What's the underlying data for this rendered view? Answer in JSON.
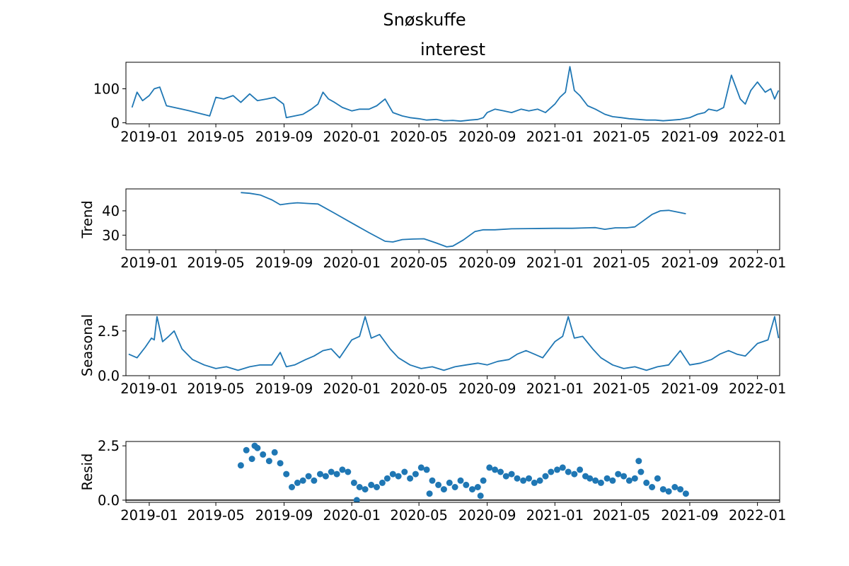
{
  "figure_title": "Snøskuffe",
  "chart_data": [
    {
      "type": "line",
      "title": "interest",
      "ylabel": "",
      "ylim": [
        -3,
        178
      ],
      "yticks": [
        0,
        100
      ],
      "xlim": [
        "2018-11-20",
        "2022-02-10"
      ],
      "xticks": [
        "2019-01",
        "2019-05",
        "2019-09",
        "2020-01",
        "2020-05",
        "2020-09",
        "2021-01",
        "2021-05",
        "2021-09",
        "2022-01"
      ],
      "grid": false,
      "series": [
        {
          "x": [
            "2018-12-01",
            "2018-12-10",
            "2018-12-20",
            "2019-01-01",
            "2019-01-10",
            "2019-01-20",
            "2019-02-01",
            "2019-02-15",
            "2019-03-01",
            "2019-03-15",
            "2019-04-01",
            "2019-04-20",
            "2019-05-01",
            "2019-05-15",
            "2019-06-01",
            "2019-06-15",
            "2019-07-01",
            "2019-07-15",
            "2019-08-01",
            "2019-08-15",
            "2019-08-31",
            "2019-09-05",
            "2019-09-20",
            "2019-10-05",
            "2019-10-20",
            "2019-11-01",
            "2019-11-10",
            "2019-11-20",
            "2019-12-01",
            "2019-12-15",
            "2020-01-01",
            "2020-01-15",
            "2020-02-01",
            "2020-02-15",
            "2020-03-01",
            "2020-03-15",
            "2020-04-01",
            "2020-04-15",
            "2020-05-01",
            "2020-05-15",
            "2020-06-01",
            "2020-06-15",
            "2020-07-01",
            "2020-07-15",
            "2020-08-01",
            "2020-08-15",
            "2020-08-25",
            "2020-09-01",
            "2020-09-15",
            "2020-10-01",
            "2020-10-15",
            "2020-11-01",
            "2020-11-15",
            "2020-12-01",
            "2020-12-15",
            "2021-01-01",
            "2021-01-10",
            "2021-01-20",
            "2021-01-28",
            "2021-02-05",
            "2021-02-15",
            "2021-03-01",
            "2021-03-15",
            "2021-04-01",
            "2021-04-15",
            "2021-05-01",
            "2021-05-15",
            "2021-06-01",
            "2021-06-15",
            "2021-07-01",
            "2021-07-15",
            "2021-08-01",
            "2021-08-15",
            "2021-09-01",
            "2021-09-15",
            "2021-09-28",
            "2021-10-05",
            "2021-10-20",
            "2021-11-01",
            "2021-11-15",
            "2021-12-01",
            "2021-12-10",
            "2021-12-20",
            "2022-01-01",
            "2022-01-15",
            "2022-01-25",
            "2022-02-01",
            "2022-02-08"
          ],
          "y": [
            45,
            90,
            65,
            80,
            100,
            105,
            50,
            45,
            40,
            35,
            28,
            20,
            75,
            70,
            80,
            60,
            85,
            65,
            70,
            75,
            55,
            15,
            20,
            25,
            40,
            55,
            90,
            70,
            60,
            45,
            35,
            40,
            40,
            50,
            70,
            30,
            20,
            15,
            12,
            8,
            10,
            6,
            7,
            5,
            8,
            10,
            15,
            30,
            40,
            35,
            30,
            40,
            35,
            40,
            30,
            55,
            75,
            90,
            165,
            95,
            80,
            50,
            40,
            25,
            18,
            15,
            12,
            10,
            8,
            8,
            6,
            8,
            10,
            15,
            25,
            30,
            40,
            35,
            45,
            140,
            70,
            55,
            95,
            120,
            90,
            100,
            70,
            95
          ]
        }
      ]
    },
    {
      "type": "line",
      "title": "",
      "ylabel": "Trend",
      "ylim": [
        24,
        49
      ],
      "yticks": [
        30,
        40
      ],
      "xlim": [
        "2018-11-20",
        "2022-02-10"
      ],
      "xticks": [
        "2019-01",
        "2019-05",
        "2019-09",
        "2020-01",
        "2020-05",
        "2020-09",
        "2021-01",
        "2021-05",
        "2021-09",
        "2022-01"
      ],
      "grid": false,
      "series": [
        {
          "x": [
            "2019-06-15",
            "2019-07-01",
            "2019-07-20",
            "2019-08-10",
            "2019-08-25",
            "2019-09-10",
            "2019-09-25",
            "2019-10-15",
            "2019-11-01",
            "2019-12-01",
            "2020-01-01",
            "2020-02-01",
            "2020-03-01",
            "2020-03-15",
            "2020-04-01",
            "2020-04-20",
            "2020-05-10",
            "2020-06-01",
            "2020-06-20",
            "2020-07-01",
            "2020-07-20",
            "2020-08-10",
            "2020-08-25",
            "2020-09-15",
            "2020-10-15",
            "2020-11-15",
            "2021-01-01",
            "2021-02-01",
            "2021-03-01",
            "2021-03-15",
            "2021-04-01",
            "2021-04-20",
            "2021-05-10",
            "2021-05-25",
            "2021-06-10",
            "2021-06-25",
            "2021-07-10",
            "2021-07-25",
            "2021-08-10",
            "2021-08-25"
          ],
          "y": [
            47.5,
            47.2,
            46.5,
            44.5,
            42.5,
            43,
            43.3,
            43,
            42.8,
            39,
            35,
            31,
            27.5,
            27.2,
            28.2,
            28.4,
            28.5,
            26.8,
            25.2,
            25.5,
            28,
            31.5,
            32.2,
            32.2,
            32.6,
            32.7,
            32.8,
            32.8,
            33,
            33.1,
            32.4,
            33,
            33,
            33.4,
            36,
            38.5,
            40,
            40.2,
            39.5,
            38.8
          ]
        }
      ]
    },
    {
      "type": "line",
      "title": "",
      "ylabel": "Seasonal",
      "ylim": [
        0,
        3.4
      ],
      "yticks": [
        0.0,
        2.5
      ],
      "ytick_labels": [
        "0.0",
        "2.5"
      ],
      "xlim": [
        "2018-11-20",
        "2022-02-10"
      ],
      "xticks": [
        "2019-01",
        "2019-05",
        "2019-09",
        "2020-01",
        "2020-05",
        "2020-09",
        "2021-01",
        "2021-05",
        "2021-09",
        "2022-01"
      ],
      "grid": false,
      "series": [
        {
          "x": [
            "2018-11-25",
            "2018-12-10",
            "2018-12-25",
            "2019-01-05",
            "2019-01-10",
            "2019-01-15",
            "2019-01-25",
            "2019-02-05",
            "2019-02-15",
            "2019-03-01",
            "2019-03-20",
            "2019-04-10",
            "2019-05-01",
            "2019-05-20",
            "2019-06-10",
            "2019-07-01",
            "2019-07-20",
            "2019-08-10",
            "2019-08-25",
            "2019-09-05",
            "2019-09-20",
            "2019-10-10",
            "2019-10-25",
            "2019-11-10",
            "2019-11-25",
            "2019-12-10",
            "2020-01-01",
            "2020-01-15",
            "2020-01-25",
            "2020-02-05",
            "2020-02-20",
            "2020-03-10",
            "2020-03-25",
            "2020-04-15",
            "2020-05-05",
            "2020-05-25",
            "2020-06-15",
            "2020-07-05",
            "2020-07-25",
            "2020-08-15",
            "2020-09-01",
            "2020-09-20",
            "2020-10-10",
            "2020-10-25",
            "2020-11-10",
            "2020-11-25",
            "2020-12-10",
            "2021-01-01",
            "2021-01-15",
            "2021-01-25",
            "2021-02-05",
            "2021-02-20",
            "2021-03-10",
            "2021-03-25",
            "2021-04-15",
            "2021-05-05",
            "2021-05-25",
            "2021-06-15",
            "2021-07-05",
            "2021-07-25",
            "2021-08-15",
            "2021-09-01",
            "2021-09-20",
            "2021-10-10",
            "2021-10-25",
            "2021-11-10",
            "2021-11-25",
            "2021-12-10",
            "2022-01-01",
            "2022-01-20",
            "2022-02-01",
            "2022-02-08"
          ],
          "y": [
            1.2,
            1.0,
            1.6,
            2.1,
            2.0,
            3.3,
            1.9,
            2.2,
            2.5,
            1.5,
            0.9,
            0.6,
            0.4,
            0.5,
            0.3,
            0.5,
            0.6,
            0.6,
            1.3,
            0.5,
            0.6,
            0.9,
            1.1,
            1.4,
            1.5,
            1.0,
            2.0,
            2.2,
            3.3,
            2.1,
            2.3,
            1.5,
            1.0,
            0.6,
            0.4,
            0.5,
            0.3,
            0.5,
            0.6,
            0.7,
            0.6,
            0.8,
            0.9,
            1.2,
            1.4,
            1.2,
            1.0,
            1.9,
            2.2,
            3.3,
            2.1,
            2.2,
            1.5,
            1.0,
            0.6,
            0.4,
            0.5,
            0.3,
            0.5,
            0.6,
            1.4,
            0.6,
            0.7,
            0.9,
            1.2,
            1.4,
            1.2,
            1.1,
            1.8,
            2.0,
            3.3,
            2.1
          ]
        }
      ]
    },
    {
      "type": "scatter",
      "title": "",
      "ylabel": "Resid",
      "ylim": [
        -0.1,
        2.7
      ],
      "yticks": [
        0.0,
        2.5
      ],
      "ytick_labels": [
        "0.0",
        "2.5"
      ],
      "xlim": [
        "2018-11-20",
        "2022-02-10"
      ],
      "xticks": [
        "2019-01",
        "2019-05",
        "2019-09",
        "2020-01",
        "2020-05",
        "2020-09",
        "2021-01",
        "2021-05",
        "2021-09",
        "2022-01"
      ],
      "grid": false,
      "hline": 0,
      "series": [
        {
          "x": [
            "2019-06-15",
            "2019-06-25",
            "2019-07-05",
            "2019-07-15",
            "2019-07-25",
            "2019-08-05",
            "2019-08-15",
            "2019-08-25",
            "2019-09-05",
            "2019-09-15",
            "2019-09-25",
            "2019-10-05",
            "2019-10-15",
            "2019-10-25",
            "2019-11-05",
            "2019-11-15",
            "2019-11-25",
            "2019-12-05",
            "2019-12-15",
            "2019-12-25",
            "2020-01-05",
            "2020-01-15",
            "2020-01-25",
            "2020-02-05",
            "2020-02-15",
            "2020-02-25",
            "2020-03-05",
            "2020-03-15",
            "2020-03-25",
            "2020-04-05",
            "2020-04-15",
            "2020-04-25",
            "2020-05-05",
            "2020-05-15",
            "2020-05-25",
            "2020-06-05",
            "2020-06-15",
            "2020-06-25",
            "2020-07-05",
            "2020-07-15",
            "2020-07-25",
            "2020-08-05",
            "2020-08-15",
            "2020-08-25",
            "2020-09-05",
            "2020-09-15",
            "2020-09-25",
            "2020-10-05",
            "2020-10-15",
            "2020-10-25",
            "2020-11-05",
            "2020-11-15",
            "2020-11-25",
            "2020-12-05",
            "2020-12-15",
            "2020-12-25",
            "2021-01-05",
            "2021-01-15",
            "2021-01-25",
            "2021-02-05",
            "2021-02-15",
            "2021-02-25",
            "2021-03-05",
            "2021-03-15",
            "2021-03-25",
            "2021-04-05",
            "2021-04-15",
            "2021-04-25",
            "2021-05-05",
            "2021-05-15",
            "2021-05-25",
            "2021-06-05",
            "2021-06-15",
            "2021-06-25",
            "2021-07-05",
            "2021-07-15",
            "2021-07-25",
            "2021-08-05",
            "2021-08-15",
            "2021-08-25",
            "2021-06-01",
            "2019-07-10",
            "2020-01-10",
            "2020-05-20",
            "2020-08-20"
          ],
          "y": [
            1.6,
            2.3,
            1.9,
            2.4,
            2.1,
            1.8,
            2.2,
            1.7,
            1.2,
            0.6,
            0.8,
            0.9,
            1.1,
            0.9,
            1.2,
            1.1,
            1.3,
            1.2,
            1.4,
            1.3,
            0.8,
            0.6,
            0.5,
            0.7,
            0.6,
            0.8,
            1.0,
            1.2,
            1.1,
            1.3,
            1.0,
            1.2,
            1.5,
            1.4,
            0.9,
            0.7,
            0.5,
            0.8,
            0.6,
            0.9,
            0.7,
            0.5,
            0.6,
            0.9,
            1.5,
            1.4,
            1.3,
            1.1,
            1.2,
            1.0,
            0.9,
            1.0,
            0.8,
            0.9,
            1.1,
            1.3,
            1.4,
            1.5,
            1.3,
            1.2,
            1.4,
            1.1,
            1.0,
            0.9,
            0.8,
            1.0,
            0.9,
            1.2,
            1.1,
            0.9,
            1.0,
            1.3,
            0.8,
            0.6,
            1.0,
            0.5,
            0.4,
            0.6,
            0.5,
            0.3,
            1.8,
            2.5,
            0.0,
            0.3,
            0.2
          ]
        }
      ]
    }
  ]
}
